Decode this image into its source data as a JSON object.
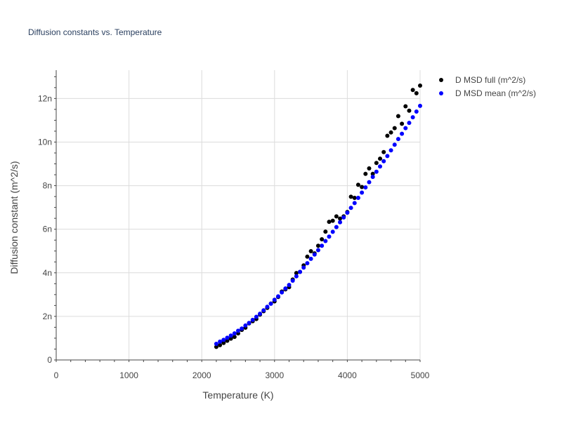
{
  "chart_data": {
    "type": "scatter",
    "title": "Diffusion constants vs. Temperature",
    "xlabel": "Temperature (K)",
    "ylabel": "Diffusion constant (m^2/s)",
    "xlim": [
      0,
      5000
    ],
    "ylim": [
      0,
      13.3
    ],
    "y_unit_scale": "1e-9",
    "xticks": [
      0,
      1000,
      2000,
      3000,
      4000,
      5000
    ],
    "xtick_labels": [
      "0",
      "1000",
      "2000",
      "3000",
      "4000",
      "5000"
    ],
    "yticks": [
      0,
      2,
      4,
      6,
      8,
      10,
      12
    ],
    "ytick_labels": [
      "0",
      "2n",
      "4n",
      "6n",
      "8n",
      "10n",
      "12n"
    ],
    "grid": true,
    "legend_position": "top-right",
    "series": [
      {
        "name": "D MSD full (m^2/s)",
        "color": "#000000",
        "x": [
          2200,
          2250,
          2300,
          2350,
          2400,
          2450,
          2500,
          2550,
          2600,
          2650,
          2700,
          2750,
          2800,
          2850,
          2900,
          2950,
          3000,
          3050,
          3100,
          3150,
          3200,
          3250,
          3300,
          3350,
          3400,
          3450,
          3500,
          3550,
          3600,
          3650,
          3700,
          3750,
          3800,
          3850,
          3900,
          3950,
          4000,
          4050,
          4100,
          4150,
          4200,
          4250,
          4300,
          4350,
          4400,
          4450,
          4500,
          4550,
          4600,
          4650,
          4700,
          4750,
          4800,
          4850,
          4900,
          4950,
          5000
        ],
        "y": [
          0.6,
          0.68,
          0.78,
          0.88,
          0.98,
          1.06,
          1.22,
          1.38,
          1.48,
          1.68,
          1.78,
          1.88,
          2.08,
          2.24,
          2.39,
          2.59,
          2.69,
          2.89,
          3.14,
          3.24,
          3.34,
          3.69,
          3.99,
          4.04,
          4.34,
          4.74,
          4.99,
          4.89,
          5.24,
          5.54,
          5.89,
          6.34,
          6.39,
          6.59,
          6.49,
          6.59,
          6.79,
          7.49,
          7.44,
          8.04,
          7.94,
          8.54,
          8.79,
          8.54,
          9.04,
          9.24,
          9.54,
          10.29,
          10.44,
          10.64,
          11.19,
          10.84,
          11.64,
          11.44,
          12.39,
          12.24,
          12.59
        ]
      },
      {
        "name": "D MSD mean (m^2/s)",
        "color": "#0000ff",
        "x": [
          2200,
          2250,
          2300,
          2350,
          2400,
          2450,
          2500,
          2550,
          2600,
          2650,
          2700,
          2750,
          2800,
          2850,
          2900,
          2950,
          3000,
          3050,
          3100,
          3150,
          3200,
          3250,
          3300,
          3350,
          3400,
          3450,
          3500,
          3550,
          3600,
          3650,
          3700,
          3750,
          3800,
          3850,
          3900,
          3950,
          4000,
          4050,
          4100,
          4150,
          4200,
          4250,
          4300,
          4350,
          4400,
          4450,
          4500,
          4550,
          4600,
          4650,
          4700,
          4750,
          4800,
          4850,
          4900,
          4950,
          5000
        ],
        "y": [
          0.74,
          0.84,
          0.92,
          1.02,
          1.12,
          1.22,
          1.34,
          1.44,
          1.58,
          1.7,
          1.84,
          1.98,
          2.12,
          2.28,
          2.44,
          2.58,
          2.76,
          2.92,
          3.1,
          3.28,
          3.44,
          3.64,
          3.84,
          4.04,
          4.24,
          4.44,
          4.64,
          4.84,
          5.04,
          5.24,
          5.46,
          5.66,
          5.88,
          6.1,
          6.32,
          6.54,
          6.76,
          6.98,
          7.2,
          7.44,
          7.68,
          7.92,
          8.16,
          8.4,
          8.64,
          8.88,
          9.12,
          9.36,
          9.62,
          9.88,
          10.14,
          10.38,
          10.64,
          10.88,
          11.14,
          11.4,
          11.66
        ]
      }
    ]
  }
}
